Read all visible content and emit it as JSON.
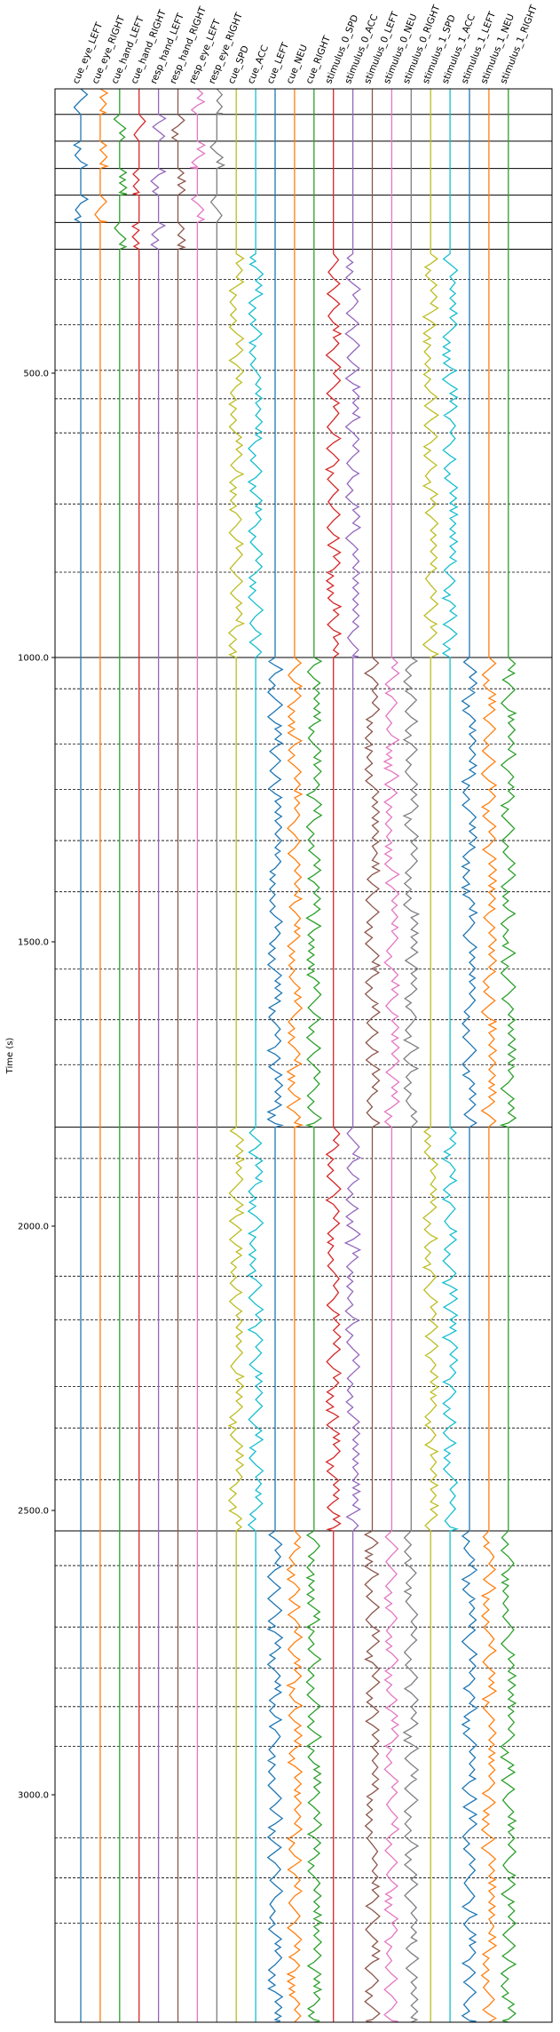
{
  "chart_data": {
    "type": "line",
    "ylabel": "Time (s)",
    "yticks": [
      500.0,
      1000.0,
      1500.0,
      2000.0,
      2500.0,
      3000.0
    ],
    "ytick_labels": [
      "500.0",
      "1000.0",
      "1500.0",
      "2000.0",
      "2500.0",
      "3000.0"
    ],
    "ylim": [
      0,
      3400
    ],
    "y_inverted": true,
    "grid": "horizontal lines at block and trial boundaries",
    "block_boundaries": [
      0,
      45,
      92,
      140,
      187,
      235,
      282,
      1000,
      1826,
      2536
    ],
    "trial_boundaries": [
      335,
      415,
      495,
      545,
      605,
      730,
      850,
      1055,
      1152,
      1232,
      1322,
      1412,
      1548,
      1637,
      1716,
      1881,
      1949,
      2088,
      2165,
      2282,
      2355,
      2446,
      2597,
      2705,
      2777,
      2845,
      2915,
      3076,
      3146,
      3226
    ],
    "series": [
      {
        "name": "cue_eye_LEFT",
        "color": "#1f77b4",
        "active": [
          [
            0,
            45
          ],
          [
            92,
            140
          ],
          [
            187,
            235
          ]
        ]
      },
      {
        "name": "cue_eye_RIGHT",
        "color": "#ff7f0e",
        "active": [
          [
            0,
            45
          ],
          [
            92,
            140
          ],
          [
            187,
            235
          ]
        ]
      },
      {
        "name": "cue_hand_LEFT",
        "color": "#2ca02c",
        "active": [
          [
            45,
            92
          ],
          [
            140,
            187
          ],
          [
            235,
            282
          ]
        ]
      },
      {
        "name": "cue_hand_RIGHT",
        "color": "#d62728",
        "active": [
          [
            45,
            92
          ],
          [
            140,
            187
          ],
          [
            235,
            282
          ]
        ]
      },
      {
        "name": "resp_hand_LEFT",
        "color": "#9467bd",
        "active": [
          [
            45,
            92
          ],
          [
            140,
            187
          ],
          [
            235,
            282
          ]
        ]
      },
      {
        "name": "resp_hand_RIGHT",
        "color": "#8c564b",
        "active": [
          [
            45,
            92
          ],
          [
            140,
            187
          ],
          [
            235,
            282
          ]
        ]
      },
      {
        "name": "resp_eye_LEFT",
        "color": "#e377c2",
        "active": [
          [
            0,
            45
          ],
          [
            92,
            140
          ],
          [
            187,
            235
          ]
        ]
      },
      {
        "name": "resp_eye_RIGHT",
        "color": "#7f7f7f",
        "active": [
          [
            0,
            45
          ],
          [
            92,
            140
          ],
          [
            187,
            235
          ]
        ]
      },
      {
        "name": "cue_SPD",
        "color": "#bcbd22",
        "active": [
          [
            290,
            1000
          ],
          [
            1826,
            2536
          ]
        ]
      },
      {
        "name": "cue_ACC",
        "color": "#17becf",
        "active": [
          [
            290,
            1000
          ],
          [
            1826,
            2536
          ]
        ]
      },
      {
        "name": "cue_LEFT",
        "color": "#1f77b4",
        "active": [
          [
            1000,
            1826
          ],
          [
            2536,
            3400
          ]
        ]
      },
      {
        "name": "cue_NEU",
        "color": "#ff7f0e",
        "active": [
          [
            1000,
            1826
          ],
          [
            2536,
            3400
          ]
        ]
      },
      {
        "name": "cue_RIGHT",
        "color": "#2ca02c",
        "active": [
          [
            1000,
            1826
          ],
          [
            2536,
            3400
          ]
        ]
      },
      {
        "name": "stimulus_0_SPD",
        "color": "#d62728",
        "active": [
          [
            290,
            1000
          ],
          [
            1826,
            2536
          ]
        ]
      },
      {
        "name": "stimulus_0_ACC",
        "color": "#9467bd",
        "active": [
          [
            290,
            1000
          ],
          [
            1826,
            2536
          ]
        ]
      },
      {
        "name": "stimulus_0_LEFT",
        "color": "#8c564b",
        "active": [
          [
            1000,
            1826
          ],
          [
            2536,
            3400
          ]
        ]
      },
      {
        "name": "stimulus_0_NEU",
        "color": "#e377c2",
        "active": [
          [
            1000,
            1826
          ],
          [
            2536,
            3400
          ]
        ]
      },
      {
        "name": "stimulus_0_RIGHT",
        "color": "#7f7f7f",
        "active": [
          [
            1000,
            1826
          ],
          [
            2536,
            3400
          ]
        ]
      },
      {
        "name": "stimulus_1_SPD",
        "color": "#bcbd22",
        "active": [
          [
            290,
            1000
          ],
          [
            1826,
            2536
          ]
        ]
      },
      {
        "name": "stimulus_1_ACC",
        "color": "#17becf",
        "active": [
          [
            290,
            1000
          ],
          [
            1826,
            2536
          ]
        ]
      },
      {
        "name": "stimulus_1_LEFT",
        "color": "#1f77b4",
        "active": [
          [
            1000,
            1826
          ],
          [
            2536,
            3400
          ]
        ]
      },
      {
        "name": "stimulus_1_NEU",
        "color": "#ff7f0e",
        "active": [
          [
            1000,
            1826
          ],
          [
            2536,
            3400
          ]
        ]
      },
      {
        "name": "stimulus_1_RIGHT",
        "color": "#2ca02c",
        "active": [
          [
            1000,
            1826
          ],
          [
            2536,
            3400
          ]
        ]
      }
    ]
  }
}
